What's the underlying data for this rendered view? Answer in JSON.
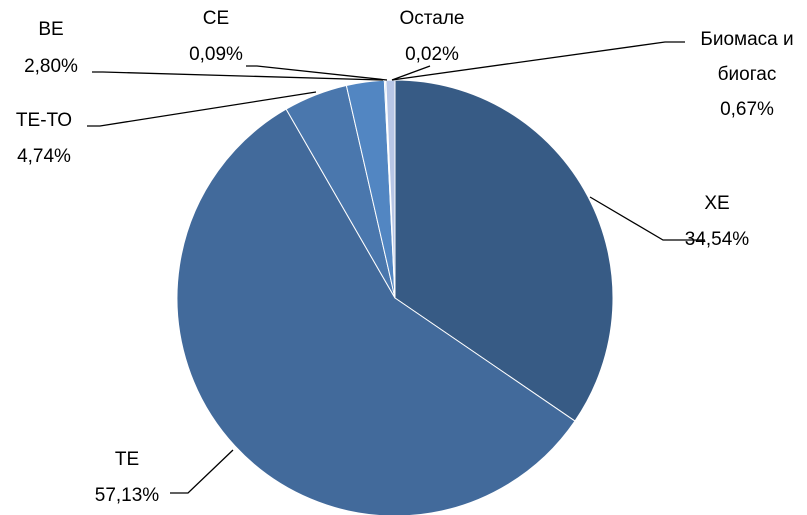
{
  "chart_data": {
    "type": "pie",
    "title": "",
    "slices": [
      {
        "label": "ХЕ",
        "value": 34.54,
        "value_text": "34,54%",
        "color": "#375b85"
      },
      {
        "label": "ТЕ",
        "value": 57.13,
        "value_text": "57,13%",
        "color": "#426a9b"
      },
      {
        "label": "ТЕ-ТО",
        "value": 4.74,
        "value_text": "4,74%",
        "color": "#4a77ad"
      },
      {
        "label": "ВЕ",
        "value": 2.8,
        "value_text": "2,80%",
        "color": "#5286c2"
      },
      {
        "label": "СЕ",
        "value": 0.09,
        "value_text": "0,09%",
        "color": "#7d9fd0"
      },
      {
        "label": "Остале",
        "value": 0.02,
        "value_text": "0,02%",
        "color": "#9db6dc"
      },
      {
        "label": "Биомаса и биогас",
        "label_lines": [
          "Биомаса и",
          "биогас"
        ],
        "value": 0.67,
        "value_text": "0,67%",
        "color": "#b7c6e6"
      }
    ],
    "legend": "none",
    "start_angle": "12 o'clock",
    "direction": "clockwise"
  }
}
